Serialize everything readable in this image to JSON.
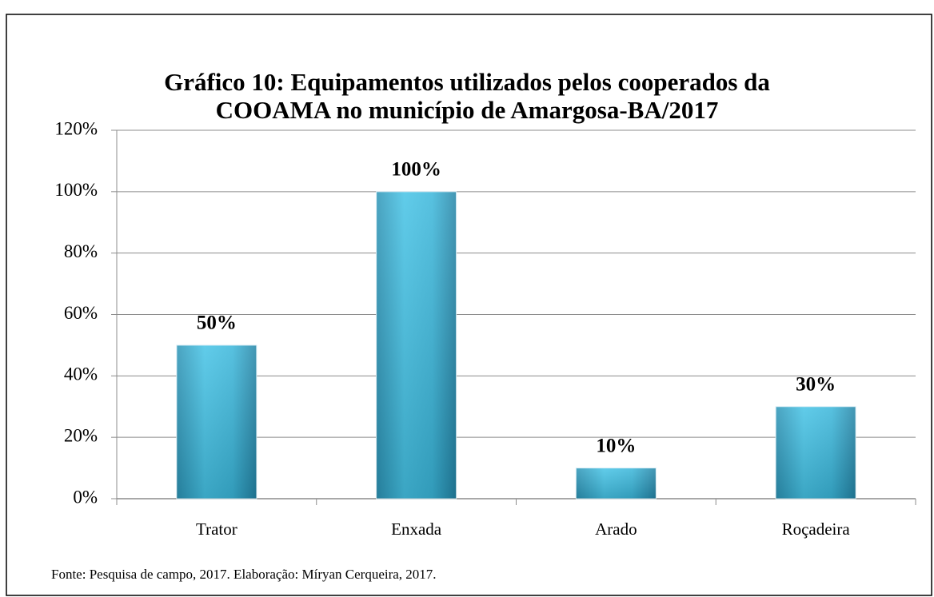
{
  "chart_data": {
    "type": "bar",
    "title": [
      "Gráfico 10: Equipamentos utilizados pelos cooperados da",
      "COOAMA no município de Amargosa-BA/2017"
    ],
    "categories": [
      "Trator",
      "Enxada",
      "Arado",
      "Roçadeira"
    ],
    "values": [
      50,
      100,
      10,
      30
    ],
    "value_labels": [
      "50%",
      "100%",
      "10%",
      "30%"
    ],
    "color": "#35b4d8",
    "ylim": [
      0,
      120
    ],
    "yticks": [
      {
        "value": 0,
        "label": "0%"
      },
      {
        "value": 20,
        "label": "20%"
      },
      {
        "value": 40,
        "label": "40%"
      },
      {
        "value": 60,
        "label": "60%"
      },
      {
        "value": 80,
        "label": "80%"
      },
      {
        "value": 100,
        "label": "100%"
      },
      {
        "value": 120,
        "label": "120%"
      }
    ],
    "grid": true,
    "source": "Fonte: Pesquisa de campo, 2017. Elaboração: Míryan Cerqueira, 2017."
  }
}
